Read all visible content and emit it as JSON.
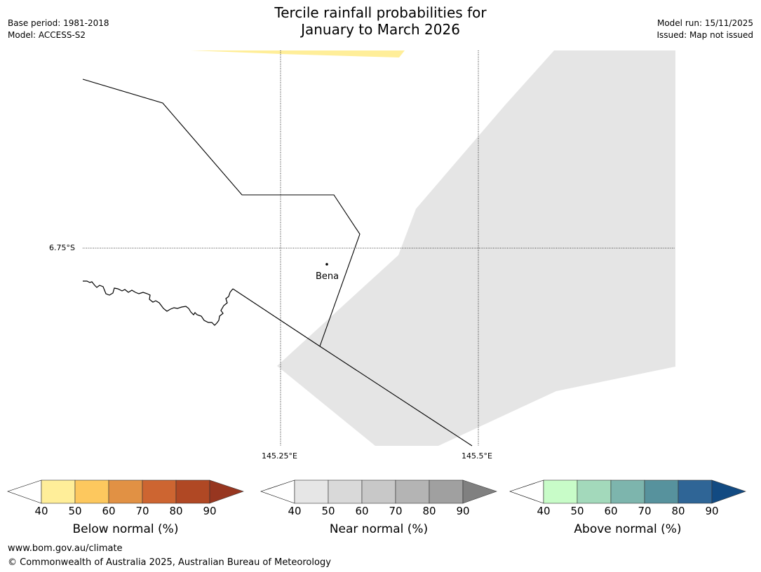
{
  "title_line1": "Tercile rainfall probabilities for",
  "title_line2": "January to March 2026",
  "base_period": "Base period: 1981-2018",
  "model": "Model: ACCESS-S2",
  "model_run": "Model run: 15/11/2025",
  "issued": "Issued: Map not issued",
  "map": {
    "lat_label": "6.75°S",
    "lon_label_1": "145.25°E",
    "lon_label_2": "145.5°E",
    "place": "Bena"
  },
  "colorbars": [
    {
      "title": "Below normal (%)",
      "ticks": [
        "40",
        "50",
        "60",
        "70",
        "80",
        "90"
      ],
      "colors": [
        "#ffee99",
        "#fdc85e",
        "#e19144",
        "#cd6531",
        "#b04824",
        "#973620"
      ]
    },
    {
      "title": "Near normal (%)",
      "ticks": [
        "40",
        "50",
        "60",
        "70",
        "80",
        "90"
      ],
      "colors": [
        "#e6e6e6",
        "#d9d9d9",
        "#c8c8c8",
        "#b4b4b4",
        "#a0a0a0",
        "#808080"
      ]
    },
    {
      "title": "Above normal (%)",
      "ticks": [
        "40",
        "50",
        "60",
        "70",
        "80",
        "90"
      ],
      "colors": [
        "#c8fcc8",
        "#a3d9bb",
        "#7db5ad",
        "#57929d",
        "#2f6596",
        "#124a82"
      ]
    }
  ],
  "footer_url": "www.bom.gov.au/climate",
  "footer_copyright": "© Commonwealth of Australia 2025, Australian Bureau of Meteorology"
}
